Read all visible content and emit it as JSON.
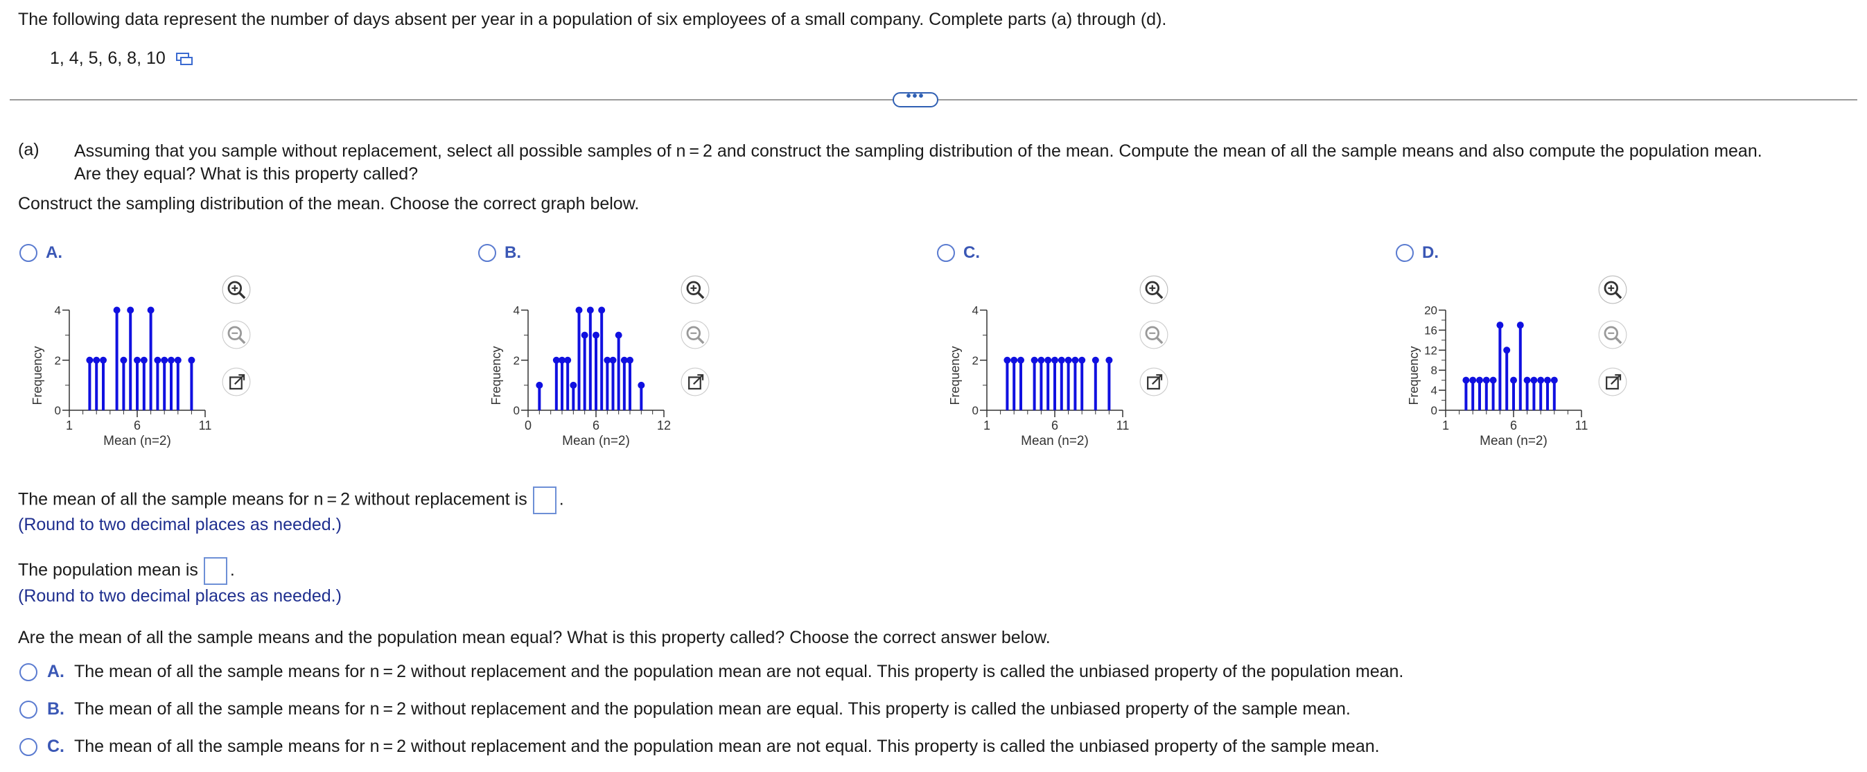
{
  "intro": "The following data represent the number of days absent per year in a population of six employees of a small company. Complete parts (a) through (d).",
  "data_values": "1, 4, 5, 6, 8, 10",
  "more_label": "•••",
  "part_a": {
    "label": "(a)",
    "question_line1": "Assuming that you sample without replacement, select all possible samples of n = 2 and construct the sampling distribution of the mean. Compute the mean of all the sample means  and also compute the population mean.",
    "question_line2": "Are they equal? What is this property called?",
    "construct": "Construct the sampling distribution of the mean. Choose the correct graph below."
  },
  "graph_options": [
    {
      "letter": "A.",
      "chart_data": {
        "type": "bar",
        "xlabel": "Mean (n=2)",
        "ylabel": "Frequency",
        "xlim": [
          1,
          11
        ],
        "ylim": [
          0,
          4
        ],
        "xticks": [
          "1",
          "6",
          "11"
        ],
        "yticks": [
          "0",
          "2",
          "4"
        ],
        "x": [
          2.5,
          3,
          3.5,
          4.5,
          5,
          5.5,
          6,
          6.5,
          7,
          7.5,
          8,
          8.5,
          9,
          10
        ],
        "values": [
          2,
          2,
          2,
          4,
          2,
          4,
          2,
          2,
          4,
          2,
          2,
          2,
          2,
          2
        ]
      }
    },
    {
      "letter": "B.",
      "chart_data": {
        "type": "bar",
        "xlabel": "Mean (n=2)",
        "ylabel": "Frequency",
        "xlim": [
          0,
          12
        ],
        "ylim": [
          0,
          4
        ],
        "xticks": [
          "0",
          "6",
          "12"
        ],
        "yticks": [
          "0",
          "2",
          "4"
        ],
        "x": [
          1,
          2.5,
          3,
          3.5,
          4,
          4.5,
          5,
          5.5,
          6,
          6.5,
          7,
          7.5,
          8,
          8.5,
          9,
          10
        ],
        "values": [
          1,
          2,
          2,
          2,
          1,
          4,
          3,
          4,
          3,
          4,
          2,
          2,
          3,
          2,
          2,
          1
        ]
      }
    },
    {
      "letter": "C.",
      "chart_data": {
        "type": "bar",
        "xlabel": "Mean (n=2)",
        "ylabel": "Frequency",
        "xlim": [
          1,
          11
        ],
        "ylim": [
          0,
          4
        ],
        "xticks": [
          "1",
          "6",
          "11"
        ],
        "yticks": [
          "0",
          "2",
          "4"
        ],
        "x": [
          2.5,
          3,
          3.5,
          4.5,
          5,
          5.5,
          6,
          6.5,
          7,
          7.5,
          8,
          9,
          10
        ],
        "values": [
          2,
          2,
          2,
          2,
          2,
          2,
          2,
          2,
          2,
          2,
          2,
          2,
          2
        ]
      }
    },
    {
      "letter": "D.",
      "chart_data": {
        "type": "bar",
        "xlabel": "Mean (n=2)",
        "ylabel": "Frequency",
        "xlim": [
          1,
          11
        ],
        "ylim": [
          0,
          20
        ],
        "xticks": [
          "1",
          "6",
          "11"
        ],
        "yticks": [
          "0",
          "4",
          "8",
          "12",
          "16",
          "20"
        ],
        "x": [
          2.5,
          3,
          3.5,
          4,
          4.5,
          5,
          5.5,
          6,
          6.5,
          7,
          7.5,
          8,
          8.5,
          9
        ],
        "values": [
          6,
          6,
          6,
          6,
          6,
          17,
          12,
          6,
          17,
          6,
          6,
          6,
          6,
          6
        ]
      }
    }
  ],
  "mean_sample": {
    "before": "The mean of all the sample means for n = 2 without replacement is",
    "after": ".",
    "hint": "(Round to two decimal places as needed.)"
  },
  "pop_mean": {
    "before": "The population mean is",
    "after": ".",
    "hint": "(Round to two decimal places as needed.)"
  },
  "equal_question": "Are the mean of all the sample means and the population mean equal? What is this property called? Choose the correct answer below.",
  "choices": [
    {
      "letter": "A.",
      "text": "The mean of all the sample means for n = 2 without replacement and the population mean are not equal. This property is called the unbiased property of the population mean."
    },
    {
      "letter": "B.",
      "text": "The mean of all the sample means for n = 2 without replacement and the population mean are equal. This property is called the unbiased property of the sample mean."
    },
    {
      "letter": "C.",
      "text": "The mean of all the sample means for n = 2 without replacement and the population mean are not equal. This property is called the unbiased property of the sample mean."
    }
  ],
  "colors": {
    "accent": "#3a57b5",
    "stem": "#1010e0",
    "hint": "#1f2f8f"
  },
  "icons": [
    "copy-icon",
    "zoom-in-icon",
    "zoom-out-icon",
    "open-external-icon"
  ]
}
